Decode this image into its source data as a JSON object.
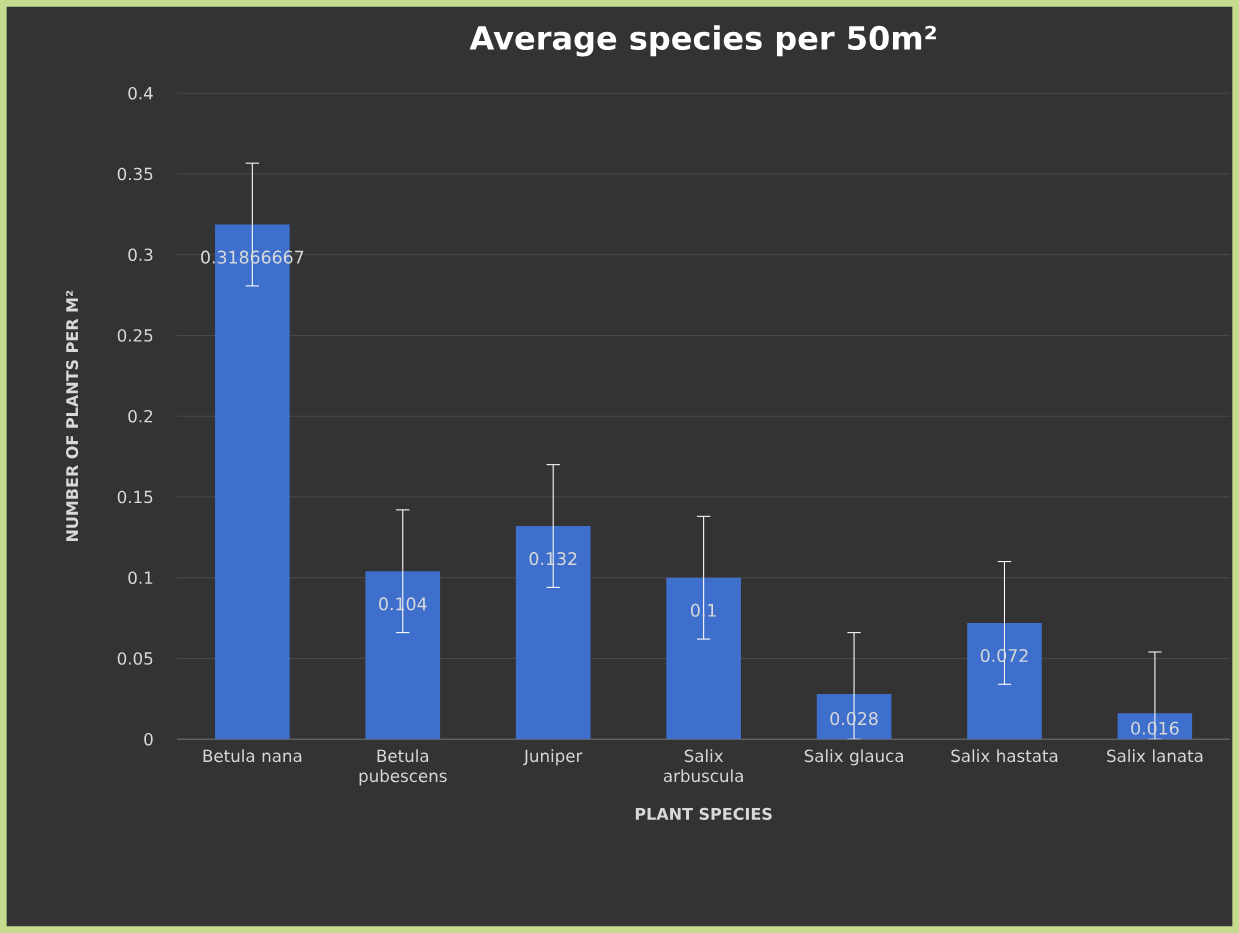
{
  "chart_data": {
    "type": "bar",
    "title": "Average species per 50m²",
    "xlabel": "PLANT SPECIES",
    "ylabel": "NUMBER OF PLANTS PER M²",
    "categories": [
      "Betula nana",
      "Betula pubescens",
      "Juniper",
      "Salix arbuscula",
      "Salix glauca",
      "Salix hastata",
      "Salix lanata"
    ],
    "values": [
      0.31866667,
      0.104,
      0.132,
      0.1,
      0.028,
      0.072,
      0.016
    ],
    "errors": [
      0.038,
      0.038,
      0.038,
      0.038,
      [
        0,
        0.066
      ],
      0.038,
      [
        0,
        0.054
      ]
    ],
    "color": "#3f6fcc",
    "ylim": [
      0,
      0.4
    ],
    "yticks": [
      0,
      0.05,
      0.1,
      0.15,
      0.2,
      0.25,
      0.3,
      0.35,
      0.4
    ],
    "grid": "y",
    "data_labels": true
  }
}
